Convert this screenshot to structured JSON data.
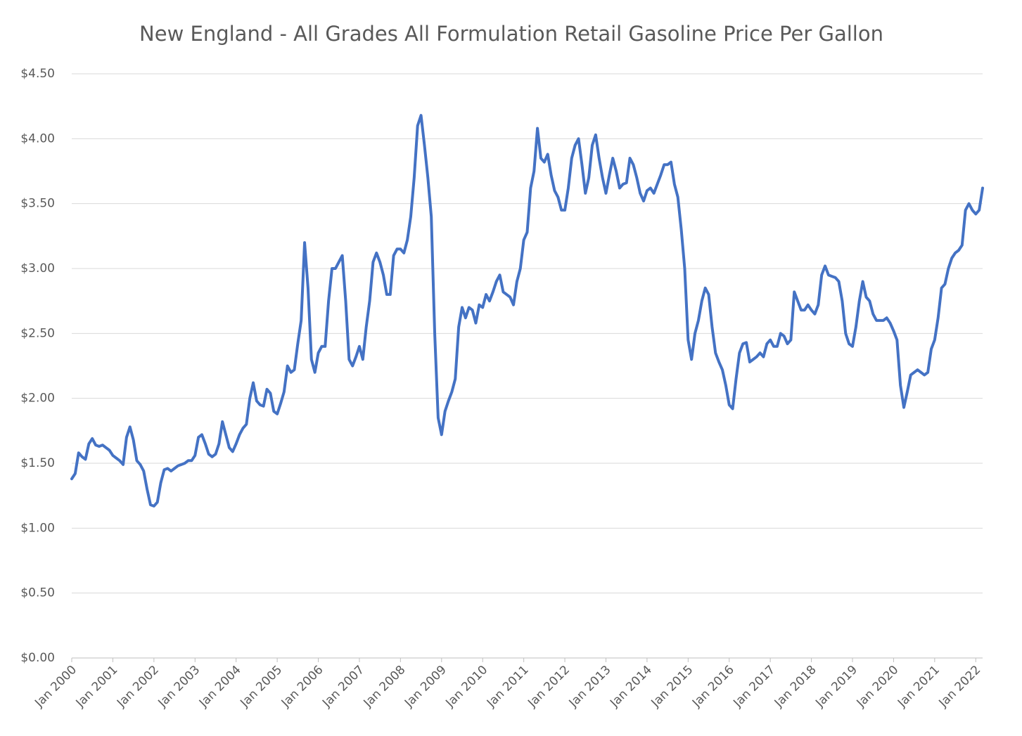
{
  "chart_data": {
    "type": "line",
    "title": "New England - All Grades All Formulation Retail Gasoline Price Per Gallon",
    "categories": [
      "Jan 2000",
      null,
      null,
      null,
      null,
      null,
      null,
      null,
      null,
      null,
      null,
      null,
      "Jan 2001",
      null,
      null,
      null,
      null,
      null,
      null,
      null,
      null,
      null,
      null,
      null,
      "Jan 2002",
      null,
      null,
      null,
      null,
      null,
      null,
      null,
      null,
      null,
      null,
      null,
      "Jan 2003",
      null,
      null,
      null,
      null,
      null,
      null,
      null,
      null,
      null,
      null,
      null,
      "Jan 2004",
      null,
      null,
      null,
      null,
      null,
      null,
      null,
      null,
      null,
      null,
      null,
      "Jan 2005",
      null,
      null,
      null,
      null,
      null,
      null,
      null,
      null,
      null,
      null,
      null,
      "Jan 2006",
      null,
      null,
      null,
      null,
      null,
      null,
      null,
      null,
      null,
      null,
      null,
      "Jan 2007",
      null,
      null,
      null,
      null,
      null,
      null,
      null,
      null,
      null,
      null,
      null,
      "Jan 2008",
      null,
      null,
      null,
      null,
      null,
      null,
      null,
      null,
      null,
      null,
      null,
      "Jan 2009",
      null,
      null,
      null,
      null,
      null,
      null,
      null,
      null,
      null,
      null,
      null,
      "Jan 2010",
      null,
      null,
      null,
      null,
      null,
      null,
      null,
      null,
      null,
      null,
      null,
      "Jan 2011",
      null,
      null,
      null,
      null,
      null,
      null,
      null,
      null,
      null,
      null,
      null,
      "Jan 2012",
      null,
      null,
      null,
      null,
      null,
      null,
      null,
      null,
      null,
      null,
      null,
      "Jan 2013",
      null,
      null,
      null,
      null,
      null,
      null,
      null,
      null,
      null,
      null,
      null,
      "Jan 2014",
      null,
      null,
      null,
      null,
      null,
      null,
      null,
      null,
      null,
      null,
      null,
      "Jan 2015",
      null,
      null,
      null,
      null,
      null,
      null,
      null,
      null,
      null,
      null,
      null,
      "Jan 2016",
      null,
      null,
      null,
      null,
      null,
      null,
      null,
      null,
      null,
      null,
      null,
      "Jan 2017",
      null,
      null,
      null,
      null,
      null,
      null,
      null,
      null,
      null,
      null,
      null,
      "Jan 2018",
      null,
      null,
      null,
      null,
      null,
      null,
      null,
      null,
      null,
      null,
      null,
      "Jan 2019",
      null,
      null,
      null,
      null,
      null,
      null,
      null,
      null,
      null,
      null,
      null,
      "Jan 2020",
      null,
      null,
      null,
      null,
      null,
      null,
      null,
      null,
      null,
      null,
      null,
      "Jan 2021",
      null,
      null,
      null,
      null,
      null,
      null,
      null,
      null,
      null,
      null,
      null,
      "Jan 2022",
      null,
      null
    ],
    "series": [
      {
        "color": "#4472c4",
        "values": [
          1.38,
          1.42,
          1.58,
          1.55,
          1.53,
          1.65,
          1.69,
          1.64,
          1.63,
          1.64,
          1.62,
          1.6,
          1.56,
          1.54,
          1.52,
          1.49,
          1.7,
          1.78,
          1.68,
          1.52,
          1.49,
          1.44,
          1.3,
          1.18,
          1.17,
          1.2,
          1.35,
          1.45,
          1.46,
          1.44,
          1.46,
          1.48,
          1.49,
          1.5,
          1.52,
          1.52,
          1.56,
          1.7,
          1.72,
          1.65,
          1.57,
          1.55,
          1.57,
          1.65,
          1.82,
          1.72,
          1.62,
          1.59,
          1.65,
          1.72,
          1.77,
          1.8,
          2.0,
          2.12,
          1.98,
          1.95,
          1.94,
          2.07,
          2.04,
          1.9,
          1.88,
          1.96,
          2.05,
          2.25,
          2.2,
          2.22,
          2.42,
          2.6,
          3.2,
          2.85,
          2.3,
          2.2,
          2.35,
          2.4,
          2.4,
          2.75,
          3.0,
          3.0,
          3.05,
          3.1,
          2.75,
          2.3,
          2.25,
          2.32,
          2.4,
          2.3,
          2.55,
          2.75,
          3.05,
          3.12,
          3.05,
          2.95,
          2.8,
          2.8,
          3.1,
          3.15,
          3.15,
          3.12,
          3.22,
          3.4,
          3.7,
          4.1,
          4.18,
          3.95,
          3.7,
          3.4,
          2.5,
          1.85,
          1.72,
          1.9,
          1.98,
          2.05,
          2.15,
          2.55,
          2.7,
          2.62,
          2.7,
          2.68,
          2.58,
          2.72,
          2.7,
          2.8,
          2.75,
          2.82,
          2.9,
          2.95,
          2.82,
          2.8,
          2.78,
          2.72,
          2.9,
          3.0,
          3.22,
          3.28,
          3.62,
          3.75,
          4.08,
          3.85,
          3.82,
          3.88,
          3.72,
          3.6,
          3.55,
          3.45,
          3.45,
          3.62,
          3.85,
          3.95,
          4.0,
          3.8,
          3.58,
          3.7,
          3.95,
          4.03,
          3.85,
          3.7,
          3.58,
          3.72,
          3.85,
          3.75,
          3.62,
          3.65,
          3.66,
          3.85,
          3.8,
          3.7,
          3.58,
          3.52,
          3.6,
          3.62,
          3.58,
          3.65,
          3.72,
          3.8,
          3.8,
          3.82,
          3.65,
          3.55,
          3.3,
          3.0,
          2.45,
          2.3,
          2.5,
          2.6,
          2.75,
          2.85,
          2.8,
          2.55,
          2.35,
          2.28,
          2.22,
          2.1,
          1.95,
          1.92,
          2.15,
          2.35,
          2.42,
          2.43,
          2.28,
          2.3,
          2.32,
          2.35,
          2.32,
          2.42,
          2.45,
          2.4,
          2.4,
          2.5,
          2.48,
          2.42,
          2.45,
          2.82,
          2.75,
          2.68,
          2.68,
          2.72,
          2.68,
          2.65,
          2.72,
          2.95,
          3.02,
          2.95,
          2.94,
          2.93,
          2.9,
          2.75,
          2.5,
          2.42,
          2.4,
          2.55,
          2.75,
          2.9,
          2.78,
          2.75,
          2.65,
          2.6,
          2.6,
          2.6,
          2.62,
          2.58,
          2.52,
          2.45,
          2.1,
          1.93,
          2.05,
          2.18,
          2.2,
          2.22,
          2.2,
          2.18,
          2.2,
          2.38,
          2.45,
          2.62,
          2.85,
          2.88,
          3.0,
          3.08,
          3.12,
          3.14,
          3.18,
          3.45,
          3.5,
          3.45,
          3.42,
          3.45,
          3.62
        ]
      }
    ],
    "ylim": [
      0,
      4.5
    ],
    "yticks": [
      {
        "value": 0,
        "label": "$0.00"
      },
      {
        "value": 0.5,
        "label": "$0.50"
      },
      {
        "value": 1,
        "label": "$1.00"
      },
      {
        "value": 1.5,
        "label": "$1.50"
      },
      {
        "value": 2,
        "label": "$2.00"
      },
      {
        "value": 2.5,
        "label": "$2.50"
      },
      {
        "value": 3,
        "label": "$3.00"
      },
      {
        "value": 3.5,
        "label": "$3.50"
      },
      {
        "value": 4,
        "label": "$4.00"
      },
      {
        "value": 4.5,
        "label": "$4.50"
      }
    ],
    "grid": true
  }
}
